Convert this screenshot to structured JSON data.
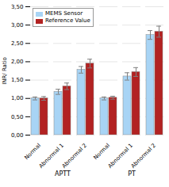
{
  "chart_data": {
    "type": "bar",
    "categories": [
      "Normal",
      "Abnormal 1",
      "Abnormal 2",
      "Normal",
      "Abnormal 1",
      "Abnormal 2"
    ],
    "annotations": [
      "APTT",
      "PT"
    ],
    "series": [
      {
        "name": "MEMS Sensor",
        "color": "#a8d4f5",
        "values": [
          1.0,
          1.18,
          1.78,
          1.0,
          1.6,
          2.73
        ],
        "errors": [
          0.04,
          0.07,
          0.09,
          0.04,
          0.1,
          0.12
        ]
      },
      {
        "name": "Reference Value",
        "color": "#b22222",
        "values": [
          1.0,
          1.33,
          1.95,
          1.02,
          1.72,
          2.82
        ],
        "errors": [
          0.05,
          0.09,
          0.12,
          0.04,
          0.12,
          0.15
        ]
      }
    ],
    "ylabel": "INR/ Ratio",
    "ylim": [
      0.0,
      3.5
    ],
    "yticks": [
      {
        "value": 0.0,
        "label": "0,00"
      },
      {
        "value": 0.5,
        "label": "0,50"
      },
      {
        "value": 1.0,
        "label": "1,00"
      },
      {
        "value": 1.5,
        "label": "1,50"
      },
      {
        "value": 2.0,
        "label": "2,00"
      },
      {
        "value": 2.5,
        "label": "2,50"
      },
      {
        "value": 3.0,
        "label": "3,00"
      },
      {
        "value": 3.5,
        "label": "3,50"
      }
    ],
    "grid": true,
    "legend": "upper left"
  }
}
